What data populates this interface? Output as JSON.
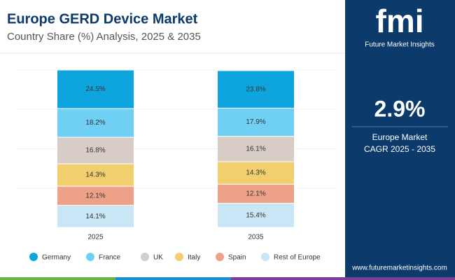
{
  "chart_data": {
    "type": "stacked_bar",
    "title": "Europe GERD Device Market",
    "subtitle": "Country Share (%) Analysis, 2025 & 2035",
    "categories": [
      "2025",
      "2035"
    ],
    "series": [
      {
        "name": "Germany",
        "color": "#0ea5de",
        "values": [
          24.5,
          23.8
        ],
        "value_labels": [
          "24.5%",
          "23.8%"
        ]
      },
      {
        "name": "France",
        "color": "#6fd0f3",
        "values": [
          18.2,
          17.9
        ],
        "value_labels": [
          "18.2%",
          "17.9%"
        ]
      },
      {
        "name": "UK",
        "color": "#d8ccc6",
        "values": [
          16.8,
          16.1
        ],
        "value_labels": [
          "16.8%",
          "16.1%"
        ]
      },
      {
        "name": "Italy",
        "color": "#f1cf6e",
        "values": [
          14.3,
          14.3
        ],
        "value_labels": [
          "14.3%",
          "14.3%"
        ]
      },
      {
        "name": "Spain",
        "color": "#eda189",
        "values": [
          12.1,
          12.1
        ],
        "value_labels": [
          "12.1%",
          "12.1%"
        ]
      },
      {
        "name": "Rest of Europe",
        "color": "#c8e6f6",
        "values": [
          14.1,
          15.4
        ],
        "value_labels": [
          "14.1%",
          "15.4%"
        ]
      }
    ],
    "ylim": [
      0,
      100
    ],
    "legend": "bottom"
  },
  "panel": {
    "logo": "fmi",
    "brand": "Future Market Insights",
    "cagr": "2.9%",
    "cagr_label_1": "Europe Market",
    "cagr_label_2": "CAGR 2025 - 2035",
    "website": "www.futuremarketinsights.com"
  }
}
